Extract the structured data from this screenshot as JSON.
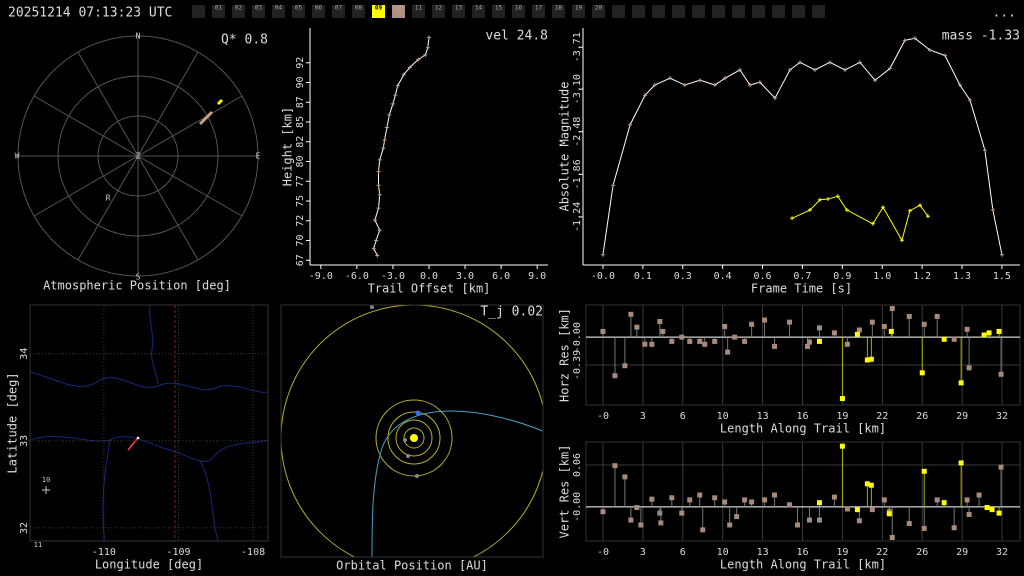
{
  "header": {
    "timestamp": "20251214 07:13:23 UTC",
    "frames": [
      "01",
      "02",
      "03",
      "04",
      "05",
      "06",
      "07",
      "08",
      "09",
      "10",
      "11",
      "12",
      "13",
      "14",
      "15",
      "16",
      "17",
      "18",
      "19",
      "20"
    ],
    "menu": "..."
  },
  "chart_data": [
    {
      "type": "polar",
      "title": "Atmospheric Position [deg]",
      "annotation": "Q*  0.8",
      "labels": [
        "N",
        "E",
        "S",
        "W",
        "Z",
        "R"
      ]
    },
    {
      "type": "line",
      "xlabel": "Trail Offset [km]",
      "ylabel": "Height [km]",
      "annotation": "vel 24.8",
      "xlim": [
        -9.9,
        9.9
      ],
      "ylim": [
        66.9,
        96.9
      ],
      "xticks": [
        {
          "value": -9,
          "label": "-9.0"
        },
        {
          "value": -6,
          "label": "-6.0"
        },
        {
          "value": -3,
          "label": "-3.0"
        },
        {
          "value": 0,
          "label": "0.0"
        },
        {
          "value": 3,
          "label": "3.0"
        },
        {
          "value": 6,
          "label": "6.0"
        },
        {
          "value": 9,
          "label": "9.0"
        }
      ],
      "yticks": [
        {
          "value": 67.5,
          "label": "67"
        },
        70,
        {
          "value": 72.5,
          "label": "72"
        },
        75,
        {
          "value": 77.5,
          "label": "77"
        },
        80,
        {
          "value": 82.5,
          "label": "82"
        },
        85,
        {
          "value": 87.5,
          "label": "87"
        },
        90,
        {
          "value": 92.5,
          "label": "92"
        }
      ],
      "series": [
        {
          "color": "#c8a080",
          "line_color": "#ffffff",
          "x": [
            0,
            -0.1,
            -0.3,
            -0.9,
            -1.6,
            -2.1,
            -2.6,
            -2.8,
            -3.0,
            -3.3,
            -3.5,
            -3.7,
            -3.8,
            -4.1,
            -4.2,
            -4.2,
            -4.1,
            -4.2,
            -4.5,
            -4.1,
            -4.4,
            -4.6,
            -4.3
          ],
          "values": [
            95.7,
            94.4,
            93.5,
            92.9,
            91.9,
            91.0,
            89.6,
            88.4,
            87.3,
            85.9,
            84.3,
            82.7,
            81.7,
            80.2,
            78.7,
            77.0,
            75.8,
            74.1,
            72.6,
            71.3,
            70.0,
            69.0,
            68.1
          ]
        }
      ]
    },
    {
      "type": "line",
      "xlabel": "Frame Time [s]",
      "ylabel": "Absolute Magnitude",
      "annotation": "mass -1.33",
      "xlim": [
        -0.075,
        1.568
      ],
      "ylim": [
        -0.54,
        -3.99
      ],
      "xticks": [
        {
          "value": 0,
          "label": "-0.0"
        },
        {
          "value": 0.15,
          "label": "0.1"
        },
        {
          "value": 0.3,
          "label": "0.3"
        },
        {
          "value": 0.45,
          "label": "0.4"
        },
        {
          "value": 0.6,
          "label": "0.6"
        },
        {
          "value": 0.75,
          "label": "0.7"
        },
        {
          "value": 0.9,
          "label": "0.9"
        },
        {
          "value": 1.05,
          "label": "1.0"
        },
        {
          "value": 1.2,
          "label": "1.2"
        },
        {
          "value": 1.35,
          "label": "1.3"
        },
        {
          "value": 1.5,
          "label": "1.5"
        }
      ],
      "yticks": [
        -3.71,
        {
          "value": -3.1,
          "label": "-3.10"
        },
        -2.48,
        -1.86,
        -1.24
      ],
      "series": [
        {
          "color": "#c8a080",
          "line_color": "#ffffff",
          "x": [
            0.0,
            0.038,
            0.102,
            0.158,
            0.195,
            0.252,
            0.308,
            0.365,
            0.421,
            0.459,
            0.515,
            0.553,
            0.59,
            0.647,
            0.703,
            0.741,
            0.797,
            0.853,
            0.91,
            0.966,
            1.023,
            1.079,
            1.135,
            1.173,
            1.229,
            1.286,
            1.342,
            1.38,
            1.436,
            1.466,
            1.5
          ],
          "values": [
            -0.69,
            -1.7,
            -2.58,
            -3.01,
            -3.16,
            -3.26,
            -3.16,
            -3.23,
            -3.16,
            -3.26,
            -3.38,
            -3.16,
            -3.2,
            -2.97,
            -3.38,
            -3.49,
            -3.38,
            -3.49,
            -3.38,
            -3.49,
            -3.23,
            -3.4,
            -3.81,
            -3.84,
            -3.67,
            -3.59,
            -3.16,
            -2.94,
            -2.21,
            -1.34,
            -0.69
          ]
        },
        {
          "color": "#ffff00",
          "line_color": "#ffff00",
          "x": [
            0.711,
            0.778,
            0.816,
            0.846,
            0.883,
            0.917,
            1.015,
            1.053,
            1.124,
            1.154,
            1.192,
            1.222
          ],
          "values": [
            -1.22,
            -1.34,
            -1.49,
            -1.5,
            -1.54,
            -1.34,
            -1.14,
            -1.38,
            -0.9,
            -1.33,
            -1.41,
            -1.25
          ]
        }
      ]
    },
    {
      "type": "map",
      "xlabel": "Longitude [deg]",
      "ylabel": "Latitude [deg]",
      "xlim": [
        -110.99,
        -107.8
      ],
      "ylim": [
        31.85,
        34.56
      ],
      "xticks": [
        -110,
        -109,
        -108
      ],
      "yticks": [
        32,
        33,
        34
      ],
      "labels": [
        "10",
        "11"
      ]
    },
    {
      "type": "orbit",
      "title": "Orbital Position [AU]",
      "annotation": "T_j 0.02"
    },
    {
      "type": "stem",
      "xlabel": "Length Along Trail [km]",
      "ylabel": "Horz Res [km]",
      "xlim": [
        -1.36,
        33.44
      ],
      "ylim": [
        -0.95,
        0.45
      ],
      "xticks": [
        {
          "value": 0,
          "label": "-0"
        },
        {
          "value": 3.2,
          "label": "3"
        },
        {
          "value": 6.4,
          "label": "6"
        },
        {
          "value": 9.6,
          "label": "10"
        },
        {
          "value": 12.8,
          "label": "13"
        },
        16,
        {
          "value": 19.2,
          "label": "19"
        },
        {
          "value": 22.4,
          "label": "22"
        },
        {
          "value": 25.6,
          "label": "26"
        },
        {
          "value": 28.8,
          "label": "29"
        },
        32
      ],
      "yticks": [
        -0.39,
        {
          "value": 0,
          "label": "-0.00"
        }
      ],
      "series": [
        {
          "color": "#a88a7a",
          "x": [
            0,
            0.96,
            1.76,
            2.24,
            2.72,
            3.36,
            3.92,
            4.56,
            4.8,
            5.52,
            6.32,
            6.96,
            7.76,
            8.16,
            8.96,
            9.76,
            10,
            10.56,
            11.36,
            11.92,
            12.96,
            13.76,
            14.96,
            16.4,
            16.56,
            17.36,
            18.56,
            19.6,
            20.56,
            21.6,
            22.56,
            23.2,
            24.56,
            25.76,
            26.8,
            28.16,
            29.2,
            29.36,
            31.92
          ],
          "values": [
            0.08,
            -0.54,
            -0.4,
            0.32,
            0.14,
            -0.1,
            -0.1,
            0.22,
            0.08,
            -0.06,
            0,
            -0.06,
            -0.06,
            -0.1,
            -0.06,
            0.15,
            -0.21,
            0,
            -0.06,
            0.18,
            0.24,
            -0.13,
            0.21,
            -0.13,
            -0.07,
            0.13,
            0.06,
            -0.1,
            0.1,
            0.21,
            0.15,
            0.4,
            0.29,
            0.18,
            0.29,
            -0.03,
            0.11,
            -0.43,
            -0.52
          ]
        },
        {
          "color": "#ffff00",
          "x": [
            17.36,
            19.2,
            20.4,
            21.2,
            21.52,
            23.12,
            25.6,
            27.36,
            28.72,
            30.56,
            30.96,
            31.76
          ],
          "values": [
            -0.06,
            -0.86,
            0.04,
            -0.32,
            -0.31,
            0.08,
            -0.5,
            -0.03,
            -0.64,
            0.03,
            0.06,
            0.08
          ]
        }
      ]
    },
    {
      "type": "stem",
      "xlabel": "Length Along Trail [km]",
      "ylabel": "Vert Res [km]",
      "xlim": [
        -1.36,
        33.44
      ],
      "ylim": [
        -0.049,
        0.093
      ],
      "xticks": [
        {
          "value": 0,
          "label": "-0"
        },
        {
          "value": 3.2,
          "label": "3"
        },
        {
          "value": 6.4,
          "label": "6"
        },
        {
          "value": 9.6,
          "label": "10"
        },
        {
          "value": 12.8,
          "label": "13"
        },
        16,
        {
          "value": 19.2,
          "label": "19"
        },
        {
          "value": 22.4,
          "label": "22"
        },
        {
          "value": 25.6,
          "label": "26"
        },
        {
          "value": 28.8,
          "label": "29"
        },
        32
      ],
      "yticks": [
        {
          "value": 0,
          "label": "-0.00"
        },
        0.06
      ],
      "series": [
        {
          "color": "#a88a7a",
          "x": [
            0,
            0.96,
            1.76,
            2.24,
            2.72,
            3.04,
            3.92,
            4.56,
            4.64,
            5.52,
            6.32,
            6.96,
            7.76,
            8,
            8.96,
            9.76,
            10.16,
            10.72,
            11.36,
            11.92,
            12.96,
            13.76,
            14.96,
            15.6,
            16.56,
            17.36,
            18.56,
            19.6,
            20.56,
            21.6,
            22.56,
            22.96,
            23.2,
            24.56,
            25.76,
            26.8,
            28.16,
            29.2,
            29.36,
            30.16,
            31.92
          ],
          "values": [
            -0.007,
            0.059,
            0.043,
            -0.019,
            -0.001,
            -0.026,
            0.011,
            -0.009,
            -0.023,
            0.013,
            -0.009,
            0.01,
            0.017,
            -0.033,
            0.013,
            0.007,
            -0.026,
            -0.014,
            0.01,
            0.007,
            0.01,
            0.017,
            0.003,
            -0.026,
            -0.019,
            -0.019,
            0.014,
            -0.003,
            -0.02,
            -0.004,
            0.01,
            -0.007,
            -0.044,
            -0.024,
            -0.031,
            0.01,
            -0.03,
            0.01,
            -0.011,
            0.017,
            0.057
          ]
        },
        {
          "color": "#ffff00",
          "x": [
            17.36,
            19.2,
            20.4,
            21.2,
            21.52,
            22.96,
            25.76,
            27.36,
            28.72,
            30.8,
            31.2,
            31.76
          ],
          "values": [
            0.006,
            0.087,
            -0.004,
            0.033,
            0.031,
            -0.01,
            0.051,
            0.006,
            0.063,
            -0.001,
            -0.004,
            -0.009
          ]
        }
      ]
    }
  ]
}
